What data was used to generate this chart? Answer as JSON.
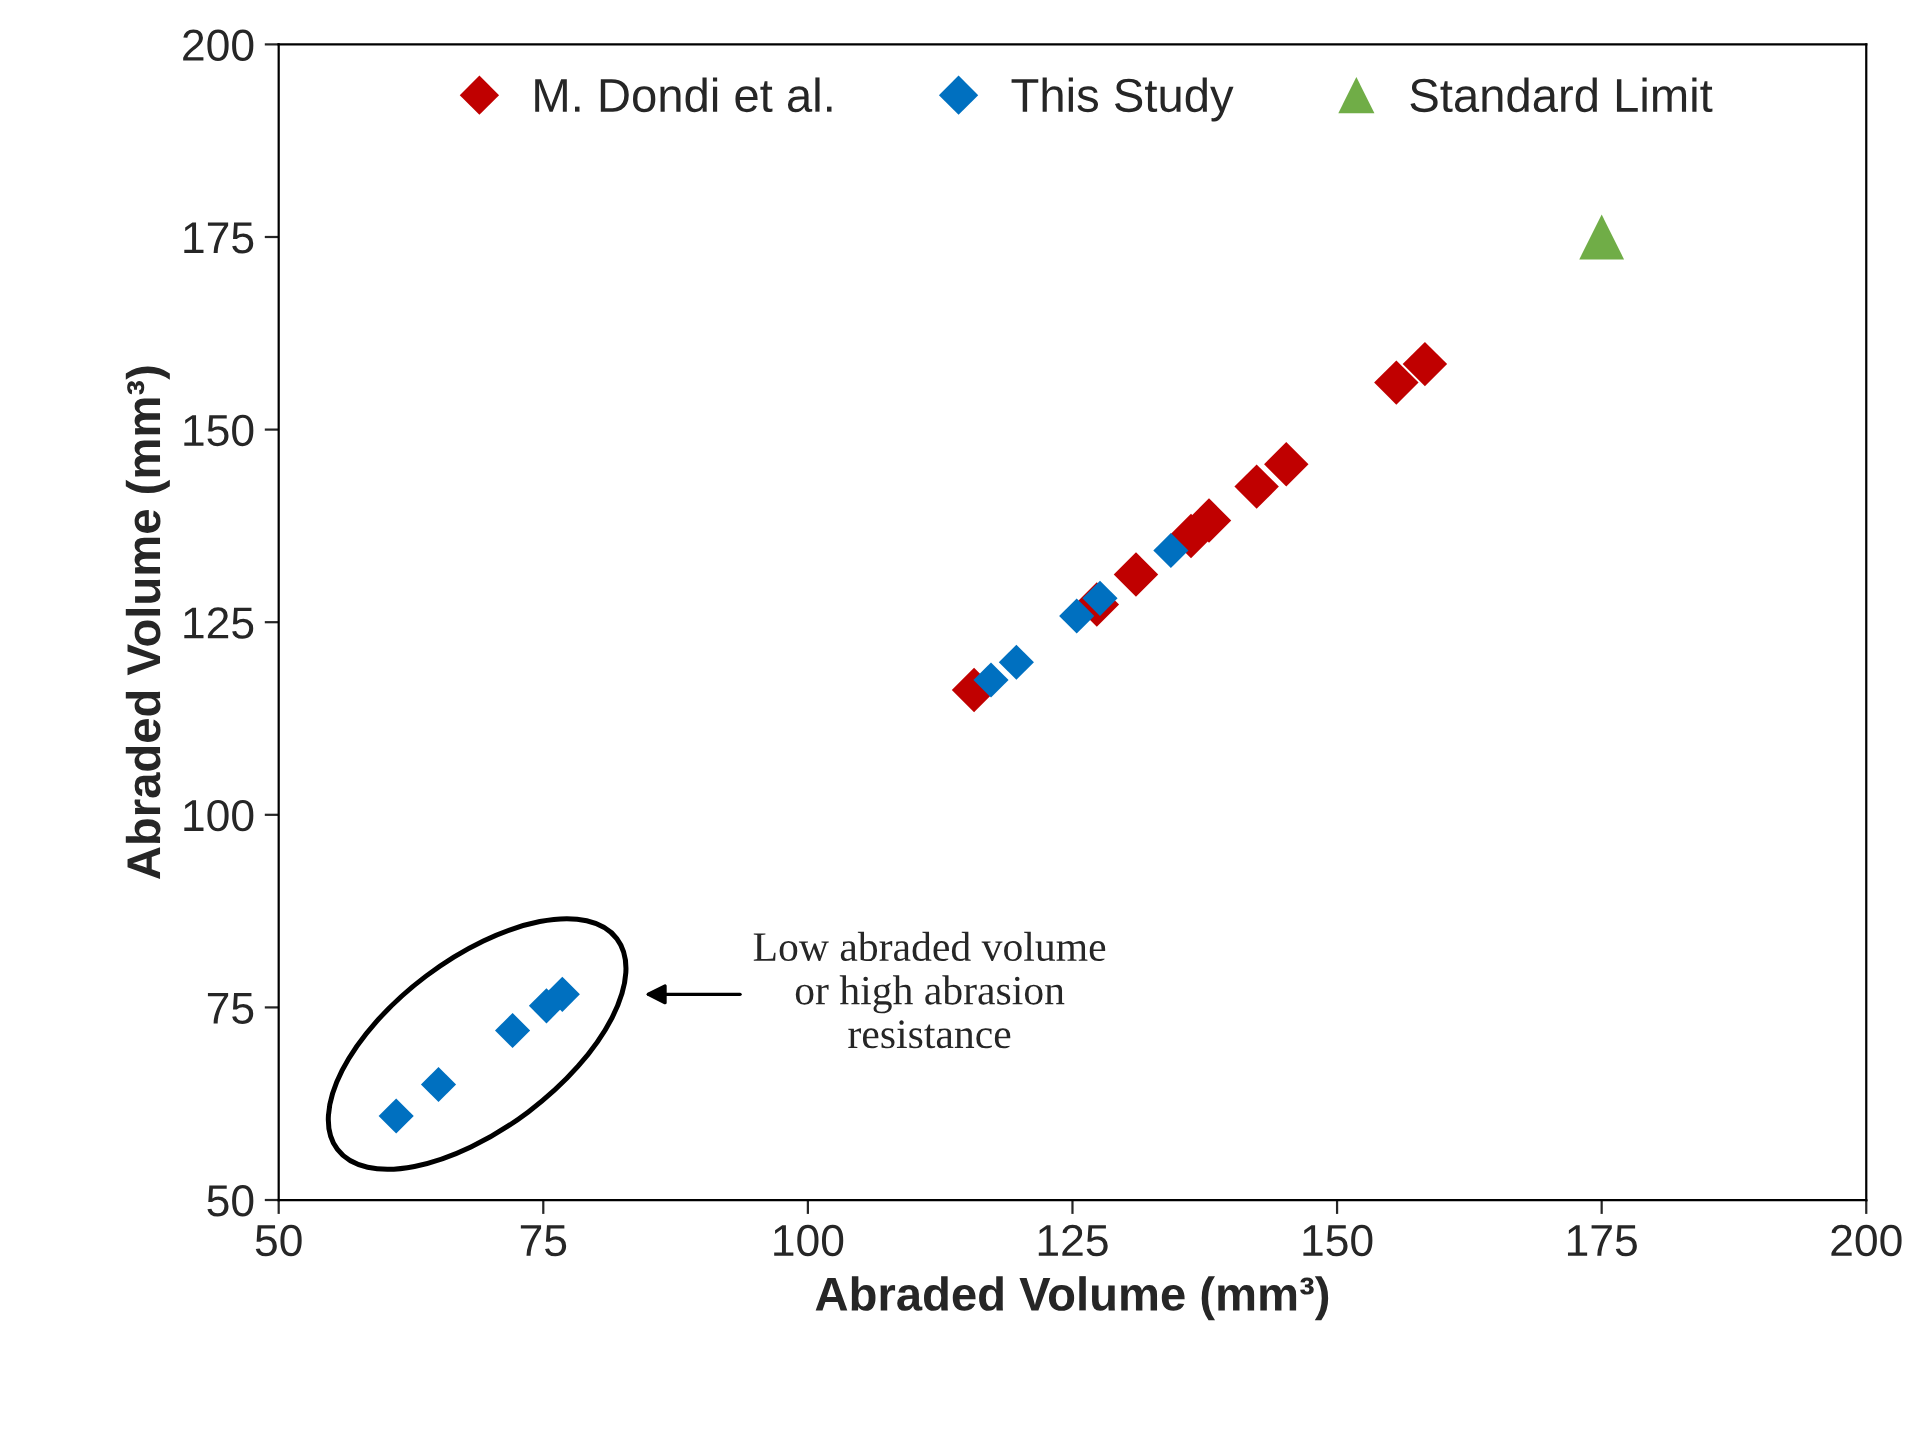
{
  "chart_data": {
    "type": "scatter",
    "xlabel": "Abraded Volume (mm³)",
    "ylabel": "Abraded Volume (mm³)",
    "xlim": [
      50,
      200
    ],
    "ylim": [
      50,
      200
    ],
    "xticks": [
      50,
      75,
      100,
      125,
      150,
      175,
      200
    ],
    "yticks": [
      50,
      75,
      100,
      125,
      150,
      175,
      200
    ],
    "grid": false,
    "legend": "top",
    "annotations": [
      "Low abraded volume or high abrasion resistance"
    ],
    "series": [
      {
        "name": "M. Dondi et al.",
        "color": "#c00000",
        "marker": "diamond",
        "x": [
          115.7,
          127.3,
          131.0,
          136.2,
          137.9,
          142.4,
          145.2,
          155.6,
          158.3
        ],
        "values": [
          116.2,
          127.3,
          131.2,
          136.2,
          138.2,
          142.6,
          145.5,
          156.1,
          158.5
        ]
      },
      {
        "name": "This Study",
        "color": "#0070c0",
        "marker": "diamond",
        "x": [
          117.3,
          119.7,
          125.4,
          127.6,
          134.3,
          61.1,
          65.1,
          72.1,
          75.3,
          76.8
        ],
        "values": [
          117.5,
          119.8,
          125.8,
          128.1,
          134.3,
          60.9,
          65.0,
          72.0,
          75.2,
          76.7
        ]
      },
      {
        "name": "Standard Limit",
        "color": "#70ad47",
        "marker": "triangle",
        "x": [
          175
        ],
        "values": [
          175
        ]
      }
    ]
  }
}
